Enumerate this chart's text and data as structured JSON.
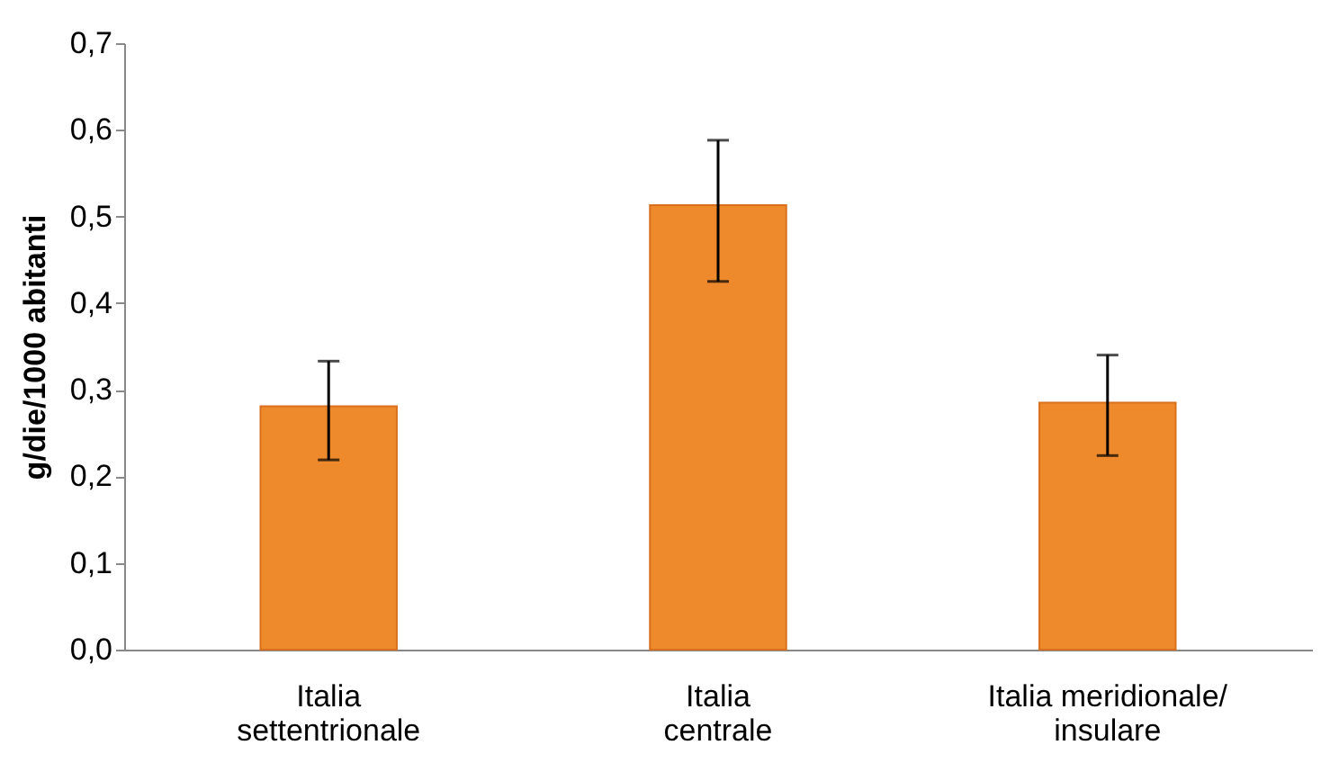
{
  "chart_data": {
    "type": "bar",
    "ylabel": "g/die/1000 abitanti",
    "categories": [
      "Italia\nsettentrionale",
      "Italia\ncentrale",
      "Italia meridionale/\ninsulare"
    ],
    "values": [
      0.281,
      0.513,
      0.285
    ],
    "errors": [
      [
        0.219,
        0.333
      ],
      [
        0.425,
        0.588
      ],
      [
        0.224,
        0.34
      ]
    ],
    "color": "#ee8a2c",
    "ylim": [
      0,
      0.7
    ],
    "yticks": [
      {
        "value": 0,
        "label": "0,0"
      },
      {
        "value": 0.1,
        "label": "0,1"
      },
      {
        "value": 0.2,
        "label": "0,2"
      },
      {
        "value": 0.3,
        "label": "0,3"
      },
      {
        "value": 0.4,
        "label": "0,4"
      },
      {
        "value": 0.5,
        "label": "0,5"
      },
      {
        "value": 0.6,
        "label": "0,6"
      },
      {
        "value": 0.7,
        "label": "0,7"
      }
    ],
    "grid": false
  }
}
